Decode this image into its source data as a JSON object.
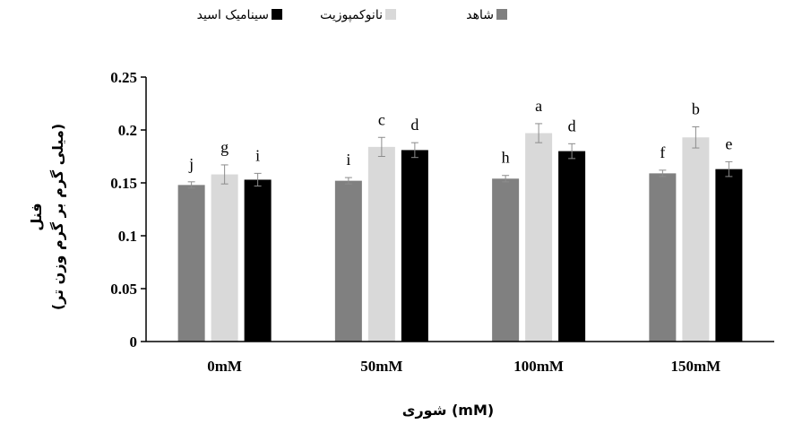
{
  "chart_data": {
    "type": "bar",
    "categories": [
      "0mM",
      "50mM",
      "100mM",
      "150mM"
    ],
    "series": [
      {
        "name": "شاهد",
        "color": "#808080",
        "values": [
          0.148,
          0.152,
          0.154,
          0.159
        ],
        "errors": [
          0.003,
          0.003,
          0.003,
          0.003
        ],
        "letters": [
          "j",
          "i",
          "h",
          "f"
        ]
      },
      {
        "name": "نانوکمپوزیت",
        "color": "#d9d9d9",
        "values": [
          0.158,
          0.184,
          0.197,
          0.193
        ],
        "errors": [
          0.009,
          0.009,
          0.009,
          0.01
        ],
        "letters": [
          "g",
          "c",
          "a",
          "b"
        ]
      },
      {
        "name": "سینامیک اسید",
        "color": "#000000",
        "values": [
          0.153,
          0.181,
          0.18,
          0.163
        ],
        "errors": [
          0.006,
          0.007,
          0.007,
          0.007
        ],
        "letters": [
          "i",
          "d",
          "d",
          "e"
        ]
      }
    ],
    "ylabel": "فنل",
    "ylabel_unit": "(میلی گرم بر گرم وزن تر)",
    "xlabel": "شوری (mM)",
    "ylim": [
      0,
      0.25
    ],
    "yticks": [
      "0",
      "0.05",
      "0.1",
      "0.15",
      "0.2",
      "0.25"
    ],
    "legend_position": "top-center",
    "grid": false
  }
}
